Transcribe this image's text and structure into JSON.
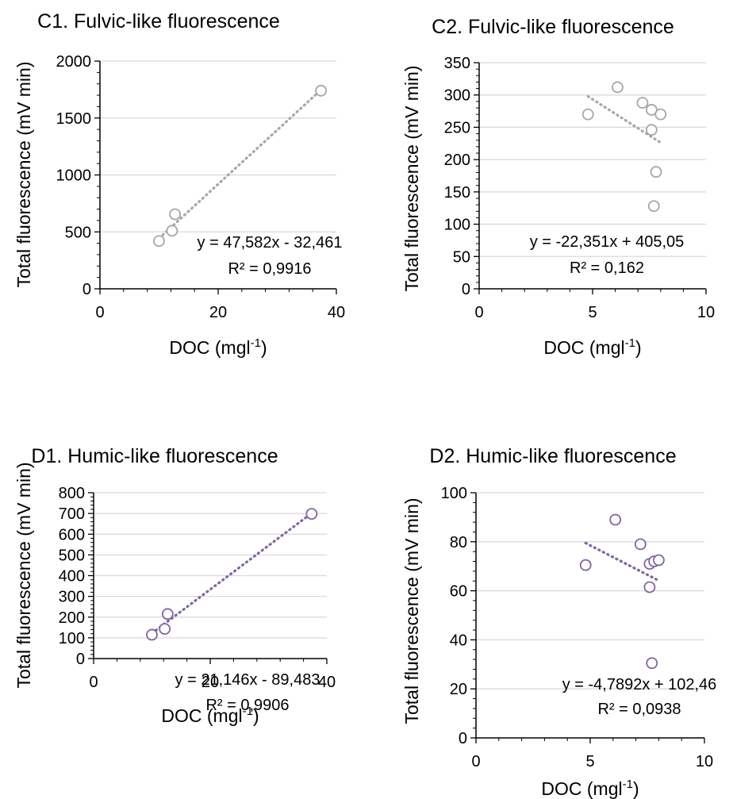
{
  "chart_data": [
    {
      "id": "c1",
      "type": "scatter",
      "title": "C1. Fulvic-like fluorescence",
      "xlabel": "DOC (mgl",
      "xlabel_sup": "-1",
      "xlabel_end": ")",
      "ylabel": "Total fluorescence (mV min)",
      "xlim": [
        0,
        40
      ],
      "ylim": [
        0,
        2000
      ],
      "xticks": [
        0,
        20,
        40
      ],
      "yticks": [
        0,
        500,
        1000,
        1500,
        2000
      ],
      "marker_color": "#a6a6a6",
      "trend_color": "#a6a6a6",
      "points": [
        [
          10.0,
          420
        ],
        [
          12.2,
          510
        ],
        [
          12.7,
          655
        ],
        [
          37.4,
          1740
        ]
      ],
      "trend": {
        "slope": 47.582,
        "intercept": -32.461,
        "x_range": [
          10.0,
          37.4
        ]
      },
      "equation": "y = 47,582x - 32,461",
      "r2": "R² = 0,9916"
    },
    {
      "id": "c2",
      "type": "scatter",
      "title": "C2. Fulvic-like fluorescence",
      "xlabel": "DOC (mgl",
      "xlabel_sup": "-1",
      "xlabel_end": ")",
      "ylabel": "Total fluorescence (mV min)",
      "xlim": [
        0,
        10
      ],
      "ylim": [
        0,
        350
      ],
      "xticks": [
        0,
        5,
        10
      ],
      "yticks": [
        0,
        50,
        100,
        150,
        200,
        250,
        300,
        350
      ],
      "marker_color": "#a6a6a6",
      "trend_color": "#a6a6a6",
      "points": [
        [
          4.8,
          270
        ],
        [
          6.1,
          312
        ],
        [
          7.2,
          288
        ],
        [
          7.6,
          277
        ],
        [
          8.0,
          270
        ],
        [
          7.6,
          246
        ],
        [
          7.8,
          181
        ],
        [
          7.7,
          128
        ]
      ],
      "trend": {
        "slope": -22.351,
        "intercept": 405.05,
        "x_range": [
          4.8,
          8.0
        ]
      },
      "equation": "y = -22,351x + 405,05",
      "r2": "R² = 0,162"
    },
    {
      "id": "d1",
      "type": "scatter",
      "title": "D1. Humic-like fluorescence",
      "xlabel": "DOC (mgl",
      "xlabel_sup": "-1",
      "xlabel_end": ")",
      "ylabel": "Total fluorescence (mV min)",
      "xlim": [
        0,
        40
      ],
      "ylim": [
        0,
        800
      ],
      "xticks": [
        0,
        20,
        40
      ],
      "yticks": [
        0,
        100,
        200,
        300,
        400,
        500,
        600,
        700,
        800
      ],
      "marker_color": "#8064a2",
      "trend_color": "#8064a2",
      "points": [
        [
          10.0,
          115
        ],
        [
          12.2,
          143
        ],
        [
          12.7,
          215
        ],
        [
          37.4,
          698
        ]
      ],
      "trend": {
        "slope": 21.146,
        "intercept": -89.483,
        "x_range": [
          10.0,
          37.4
        ]
      },
      "equation": "y = 21,146x - 89,483",
      "r2": "R² = 0,9906"
    },
    {
      "id": "d2",
      "type": "scatter",
      "title": "D2. Humic-like fluorescence",
      "xlabel": "DOC (mgl",
      "xlabel_sup": "-1",
      "xlabel_end": ")",
      "ylabel": "Total fluorescence (mV min)",
      "xlim": [
        0,
        10
      ],
      "ylim": [
        0,
        100
      ],
      "xticks": [
        0,
        5,
        10
      ],
      "yticks": [
        0,
        20,
        40,
        60,
        80,
        100
      ],
      "marker_color": "#8064a2",
      "trend_color": "#8064a2",
      "points": [
        [
          4.8,
          70.5
        ],
        [
          6.1,
          89
        ],
        [
          7.2,
          79
        ],
        [
          7.6,
          71
        ],
        [
          7.8,
          72
        ],
        [
          8.0,
          72.5
        ],
        [
          7.6,
          61.5
        ],
        [
          7.7,
          30.5
        ]
      ],
      "trend": {
        "slope": -4.7892,
        "intercept": 102.46,
        "x_range": [
          4.8,
          8.0
        ]
      },
      "equation": "y = -4,7892x + 102,46",
      "r2": "R² = 0,0938"
    }
  ]
}
